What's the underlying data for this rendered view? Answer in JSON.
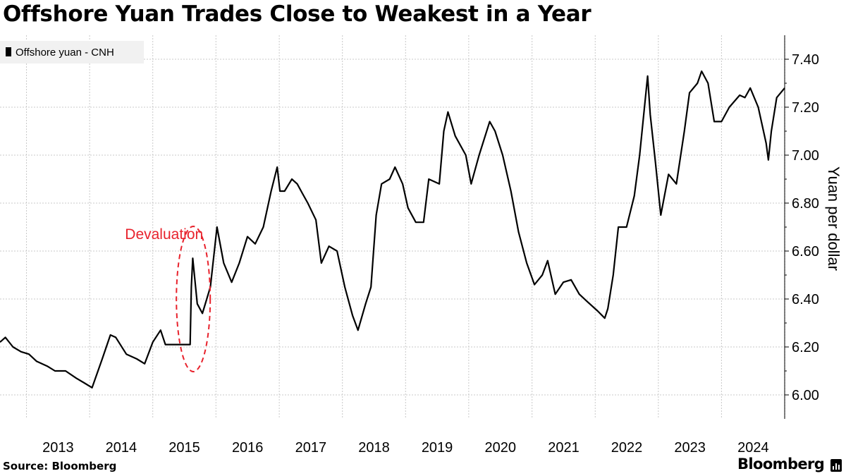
{
  "title": "Offshore Yuan Trades Close to Weakest in a Year",
  "source": "Source: Bloomberg",
  "brand": "Bloomberg",
  "chart_data": {
    "type": "line",
    "legend": {
      "label": "Offshore yuan - CNH",
      "placement": "top-left"
    },
    "ylabel": "Yuan per dollar",
    "ylim": [
      5.9,
      7.5
    ],
    "yticks": [
      "6.00",
      "6.20",
      "6.40",
      "6.60",
      "6.80",
      "7.00",
      "7.20",
      "7.40"
    ],
    "xlim": [
      "2012-08-01",
      "2024-12-31"
    ],
    "xticks": [
      "2013",
      "2014",
      "2015",
      "2016",
      "2017",
      "2018",
      "2019",
      "2020",
      "2021",
      "2022",
      "2023",
      "2024"
    ],
    "grid": true,
    "annotation": {
      "text": "Devaluation",
      "date": "2015-08-11",
      "color": "#e8222c"
    },
    "line_color": "#000000",
    "series": [
      {
        "name": "Offshore yuan - CNH",
        "points": [
          [
            "2012-08-01",
            6.22
          ],
          [
            "2012-09-01",
            6.24
          ],
          [
            "2012-10-15",
            6.2
          ],
          [
            "2012-12-01",
            6.18
          ],
          [
            "2013-01-15",
            6.17
          ],
          [
            "2013-03-01",
            6.14
          ],
          [
            "2013-05-01",
            6.12
          ],
          [
            "2013-06-15",
            6.1
          ],
          [
            "2013-08-15",
            6.1
          ],
          [
            "2013-10-15",
            6.07
          ],
          [
            "2013-12-01",
            6.05
          ],
          [
            "2014-01-15",
            6.03
          ],
          [
            "2014-03-15",
            6.15
          ],
          [
            "2014-05-01",
            6.25
          ],
          [
            "2014-06-01",
            6.24
          ],
          [
            "2014-08-01",
            6.17
          ],
          [
            "2014-10-01",
            6.15
          ],
          [
            "2014-11-15",
            6.13
          ],
          [
            "2015-01-01",
            6.22
          ],
          [
            "2015-02-15",
            6.27
          ],
          [
            "2015-03-15",
            6.21
          ],
          [
            "2015-05-15",
            6.21
          ],
          [
            "2015-08-05",
            6.21
          ],
          [
            "2015-08-12",
            6.45
          ],
          [
            "2015-08-20",
            6.57
          ],
          [
            "2015-09-15",
            6.38
          ],
          [
            "2015-10-15",
            6.34
          ],
          [
            "2015-11-30",
            6.45
          ],
          [
            "2016-01-07",
            6.7
          ],
          [
            "2016-02-15",
            6.55
          ],
          [
            "2016-04-01",
            6.47
          ],
          [
            "2016-05-15",
            6.55
          ],
          [
            "2016-07-01",
            6.66
          ],
          [
            "2016-08-15",
            6.63
          ],
          [
            "2016-10-01",
            6.7
          ],
          [
            "2016-11-15",
            6.85
          ],
          [
            "2016-12-20",
            6.95
          ],
          [
            "2017-01-05",
            6.85
          ],
          [
            "2017-02-01",
            6.85
          ],
          [
            "2017-03-15",
            6.9
          ],
          [
            "2017-04-15",
            6.88
          ],
          [
            "2017-05-15",
            6.84
          ],
          [
            "2017-06-15",
            6.8
          ],
          [
            "2017-08-01",
            6.73
          ],
          [
            "2017-09-01",
            6.55
          ],
          [
            "2017-10-15",
            6.62
          ],
          [
            "2017-12-01",
            6.6
          ],
          [
            "2018-01-15",
            6.45
          ],
          [
            "2018-03-01",
            6.33
          ],
          [
            "2018-04-01",
            6.27
          ],
          [
            "2018-05-15",
            6.38
          ],
          [
            "2018-06-15",
            6.45
          ],
          [
            "2018-07-15",
            6.75
          ],
          [
            "2018-08-15",
            6.88
          ],
          [
            "2018-10-01",
            6.9
          ],
          [
            "2018-11-01",
            6.95
          ],
          [
            "2018-12-15",
            6.88
          ],
          [
            "2019-01-15",
            6.78
          ],
          [
            "2019-03-01",
            6.72
          ],
          [
            "2019-04-15",
            6.72
          ],
          [
            "2019-05-15",
            6.9
          ],
          [
            "2019-07-15",
            6.88
          ],
          [
            "2019-08-10",
            7.1
          ],
          [
            "2019-09-03",
            7.18
          ],
          [
            "2019-10-15",
            7.08
          ],
          [
            "2019-12-15",
            7.0
          ],
          [
            "2020-01-15",
            6.88
          ],
          [
            "2020-03-01",
            7.0
          ],
          [
            "2020-05-01",
            7.14
          ],
          [
            "2020-06-01",
            7.1
          ],
          [
            "2020-07-15",
            7.0
          ],
          [
            "2020-09-01",
            6.85
          ],
          [
            "2020-10-15",
            6.68
          ],
          [
            "2020-12-01",
            6.55
          ],
          [
            "2021-01-15",
            6.46
          ],
          [
            "2021-03-01",
            6.5
          ],
          [
            "2021-04-01",
            6.56
          ],
          [
            "2021-05-15",
            6.42
          ],
          [
            "2021-07-01",
            6.47
          ],
          [
            "2021-08-15",
            6.48
          ],
          [
            "2021-10-01",
            6.42
          ],
          [
            "2021-11-15",
            6.39
          ],
          [
            "2022-01-15",
            6.35
          ],
          [
            "2022-02-25",
            6.32
          ],
          [
            "2022-03-15",
            6.36
          ],
          [
            "2022-04-15",
            6.5
          ],
          [
            "2022-05-15",
            6.7
          ],
          [
            "2022-07-01",
            6.7
          ],
          [
            "2022-08-15",
            6.83
          ],
          [
            "2022-09-15",
            7.0
          ],
          [
            "2022-10-31",
            7.33
          ],
          [
            "2022-11-15",
            7.17
          ],
          [
            "2022-12-15",
            6.97
          ],
          [
            "2023-01-15",
            6.75
          ],
          [
            "2023-03-01",
            6.92
          ],
          [
            "2023-04-15",
            6.88
          ],
          [
            "2023-05-31",
            7.1
          ],
          [
            "2023-06-30",
            7.26
          ],
          [
            "2023-08-15",
            7.3
          ],
          [
            "2023-09-08",
            7.35
          ],
          [
            "2023-10-15",
            7.3
          ],
          [
            "2023-11-20",
            7.14
          ],
          [
            "2024-01-01",
            7.14
          ],
          [
            "2024-02-15",
            7.2
          ],
          [
            "2024-04-15",
            7.25
          ],
          [
            "2024-05-15",
            7.24
          ],
          [
            "2024-06-15",
            7.28
          ],
          [
            "2024-07-31",
            7.2
          ],
          [
            "2024-09-15",
            7.05
          ],
          [
            "2024-09-28",
            6.98
          ],
          [
            "2024-10-15",
            7.1
          ],
          [
            "2024-11-15",
            7.24
          ],
          [
            "2024-12-31",
            7.28
          ]
        ]
      }
    ]
  }
}
